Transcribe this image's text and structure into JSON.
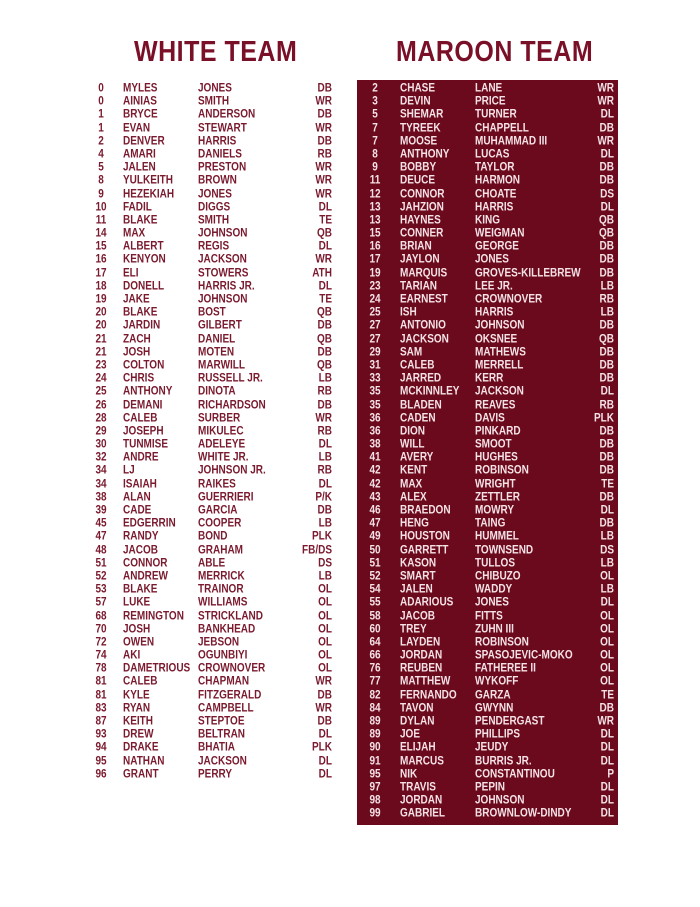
{
  "white_team": {
    "title": "WHITE TEAM",
    "text_color": "#7a1a2e",
    "players": [
      [
        "0",
        "MYLES",
        "JONES",
        "DB"
      ],
      [
        "0",
        "AINIAS",
        "SMITH",
        "WR"
      ],
      [
        "1",
        "BRYCE",
        "ANDERSON",
        "DB"
      ],
      [
        "1",
        "EVAN",
        "STEWART",
        "WR"
      ],
      [
        "2",
        "DENVER",
        "HARRIS",
        "DB"
      ],
      [
        "4",
        "AMARI",
        "DANIELS",
        "RB"
      ],
      [
        "5",
        "JALEN",
        "PRESTON",
        "WR"
      ],
      [
        "8",
        "YULKEITH",
        "BROWN",
        "WR"
      ],
      [
        "9",
        "HEZEKIAH",
        "JONES",
        "WR"
      ],
      [
        "10",
        "FADIL",
        "DIGGS",
        "DL"
      ],
      [
        "11",
        "BLAKE",
        "SMITH",
        "TE"
      ],
      [
        "14",
        "MAX",
        "JOHNSON",
        "QB"
      ],
      [
        "15",
        "ALBERT",
        "REGIS",
        "DL"
      ],
      [
        "16",
        "KENYON",
        "JACKSON",
        "WR"
      ],
      [
        "17",
        "ELI",
        "STOWERS",
        "ATH"
      ],
      [
        "18",
        "DONELL",
        "HARRIS JR.",
        "DL"
      ],
      [
        "19",
        "JAKE",
        "JOHNSON",
        "TE"
      ],
      [
        "20",
        "BLAKE",
        "BOST",
        "QB"
      ],
      [
        "20",
        "JARDIN",
        "GILBERT",
        "DB"
      ],
      [
        "21",
        "ZACH",
        "DANIEL",
        "QB"
      ],
      [
        "21",
        "JOSH",
        "MOTEN",
        "DB"
      ],
      [
        "23",
        "COLTON",
        "MARWILL",
        "QB"
      ],
      [
        "24",
        "CHRIS",
        "RUSSELL JR.",
        "LB"
      ],
      [
        "25",
        "ANTHONY",
        "DINOTA",
        "RB"
      ],
      [
        "26",
        "DEMANI",
        "RICHARDSON",
        "DB"
      ],
      [
        "28",
        "CALEB",
        "SURBER",
        "WR"
      ],
      [
        "29",
        "JOSEPH",
        "MIKULEC",
        "RB"
      ],
      [
        "30",
        "TUNMISE",
        "ADELEYE",
        "DL"
      ],
      [
        "32",
        "ANDRE",
        "WHITE JR.",
        "LB"
      ],
      [
        "34",
        "LJ",
        "JOHNSON JR.",
        "RB"
      ],
      [
        "34",
        "ISAIAH",
        "RAIKES",
        "DL"
      ],
      [
        "38",
        "ALAN",
        "GUERRIERI",
        "P/K"
      ],
      [
        "39",
        "CADE",
        "GARCIA",
        "DB"
      ],
      [
        "45",
        "EDGERRIN",
        "COOPER",
        "LB"
      ],
      [
        "47",
        "RANDY",
        "BOND",
        "PLK"
      ],
      [
        "48",
        "JACOB",
        "GRAHAM",
        "FB/DS"
      ],
      [
        "51",
        "CONNOR",
        "ABLE",
        "DS"
      ],
      [
        "52",
        "ANDREW",
        "MERRICK",
        "LB"
      ],
      [
        "53",
        "BLAKE",
        "TRAINOR",
        "OL"
      ],
      [
        "57",
        "LUKE",
        "WILLIAMS",
        "OL"
      ],
      [
        "68",
        "REMINGTON",
        "STRICKLAND",
        "OL"
      ],
      [
        "70",
        "JOSH",
        "BANKHEAD",
        "OL"
      ],
      [
        "72",
        "OWEN",
        "JEBSON",
        "OL"
      ],
      [
        "74",
        "AKI",
        "OGUNBIYI",
        "OL"
      ],
      [
        "78",
        "DAMETRIOUS",
        "CROWNOVER",
        "OL"
      ],
      [
        "81",
        "CALEB",
        "CHAPMAN",
        "WR"
      ],
      [
        "81",
        "KYLE",
        "FITZGERALD",
        "DB"
      ],
      [
        "83",
        "RYAN",
        "CAMPBELL",
        "WR"
      ],
      [
        "87",
        "KEITH",
        "STEPTOE",
        "DB"
      ],
      [
        "93",
        "DREW",
        "BELTRAN",
        "DL"
      ],
      [
        "94",
        "DRAKE",
        "BHATIA",
        "PLK"
      ],
      [
        "95",
        "NATHAN",
        "JACKSON",
        "DL"
      ],
      [
        "96",
        "GRANT",
        "PERRY",
        "DL"
      ]
    ]
  },
  "maroon_team": {
    "title": "MAROON TEAM",
    "background_color": "#6c0a1d",
    "text_color": "#f4e2e6",
    "players": [
      [
        "2",
        "CHASE",
        "LANE",
        "WR"
      ],
      [
        "3",
        "DEVIN",
        "PRICE",
        "WR"
      ],
      [
        "5",
        "SHEMAR",
        "TURNER",
        "DL"
      ],
      [
        "7",
        "TYREEK",
        "CHAPPELL",
        "DB"
      ],
      [
        "7",
        "MOOSE",
        "MUHAMMAD III",
        "WR"
      ],
      [
        "8",
        "ANTHONY",
        "LUCAS",
        "DL"
      ],
      [
        "9",
        "BOBBY",
        "TAYLOR",
        "DB"
      ],
      [
        "11",
        "DEUCE",
        "HARMON",
        "DB"
      ],
      [
        "12",
        "CONNOR",
        "CHOATE",
        "DS"
      ],
      [
        "13",
        "JAHZION",
        "HARRIS",
        "DL"
      ],
      [
        "13",
        "HAYNES",
        "KING",
        "QB"
      ],
      [
        "15",
        "CONNER",
        "WEIGMAN",
        "QB"
      ],
      [
        "16",
        "BRIAN",
        "GEORGE",
        "DB"
      ],
      [
        "17",
        "JAYLON",
        "JONES",
        "DB"
      ],
      [
        "19",
        "MARQUIS",
        "GROVES-KILLEBREW",
        "DB"
      ],
      [
        "23",
        "TARIAN",
        "LEE JR.",
        "LB"
      ],
      [
        "24",
        "EARNEST",
        "CROWNOVER",
        "RB"
      ],
      [
        "25",
        "ISH",
        "HARRIS",
        "LB"
      ],
      [
        "27",
        "ANTONIO",
        "JOHNSON",
        "DB"
      ],
      [
        "27",
        "JACKSON",
        "OKSNEE",
        "QB"
      ],
      [
        "29",
        "SAM",
        "MATHEWS",
        "DB"
      ],
      [
        "31",
        "CALEB",
        "MERRELL",
        "DB"
      ],
      [
        "33",
        "JARRED",
        "KERR",
        "DB"
      ],
      [
        "35",
        "MCKINNLEY",
        "JACKSON",
        "DL"
      ],
      [
        "35",
        "BLADEN",
        "REAVES",
        "RB"
      ],
      [
        "36",
        "CADEN",
        "DAVIS",
        "PLK"
      ],
      [
        "36",
        "DION",
        "PINKARD",
        "DB"
      ],
      [
        "38",
        "WILL",
        "SMOOT",
        "DB"
      ],
      [
        "41",
        "AVERY",
        "HUGHES",
        "DB"
      ],
      [
        "42",
        "KENT",
        "ROBINSON",
        "DB"
      ],
      [
        "42",
        "MAX",
        "WRIGHT",
        "TE"
      ],
      [
        "43",
        "ALEX",
        "ZETTLER",
        "DB"
      ],
      [
        "46",
        "BRAEDON",
        "MOWRY",
        "DL"
      ],
      [
        "47",
        "HENG",
        "TAING",
        "DB"
      ],
      [
        "49",
        "HOUSTON",
        "HUMMEL",
        "LB"
      ],
      [
        "50",
        "GARRETT",
        "TOWNSEND",
        "DS"
      ],
      [
        "51",
        "KASON",
        "TULLOS",
        "LB"
      ],
      [
        "52",
        "SMART",
        "CHIBUZO",
        "OL"
      ],
      [
        "54",
        "JALEN",
        "WADDY",
        "LB"
      ],
      [
        "55",
        "ADARIOUS",
        "JONES",
        "DL"
      ],
      [
        "58",
        "JACOB",
        "FITTS",
        "OL"
      ],
      [
        "60",
        "TREY",
        "ZUHN III",
        "OL"
      ],
      [
        "64",
        "LAYDEN",
        "ROBINSON",
        "OL"
      ],
      [
        "66",
        "JORDAN",
        "SPASOJEVIC-MOKO",
        "OL"
      ],
      [
        "76",
        "REUBEN",
        "FATHEREE II",
        "OL"
      ],
      [
        "77",
        "MATTHEW",
        "WYKOFF",
        "OL"
      ],
      [
        "82",
        "FERNANDO",
        "GARZA",
        "TE"
      ],
      [
        "84",
        "TAVON",
        "GWYNN",
        "DB"
      ],
      [
        "89",
        "DYLAN",
        "PENDERGAST",
        "WR"
      ],
      [
        "89",
        "JOE",
        "PHILLIPS",
        "DL"
      ],
      [
        "90",
        "ELIJAH",
        "JEUDY",
        "DL"
      ],
      [
        "91",
        "MARCUS",
        "BURRIS JR.",
        "DL"
      ],
      [
        "95",
        "NIK",
        "CONSTANTINOU",
        "P"
      ],
      [
        "97",
        "TRAVIS",
        "PEPIN",
        "DL"
      ],
      [
        "98",
        "JORDAN",
        "JOHNSON",
        "DL"
      ],
      [
        "99",
        "GABRIEL",
        "BROWNLOW-DINDY",
        "DL"
      ]
    ]
  }
}
